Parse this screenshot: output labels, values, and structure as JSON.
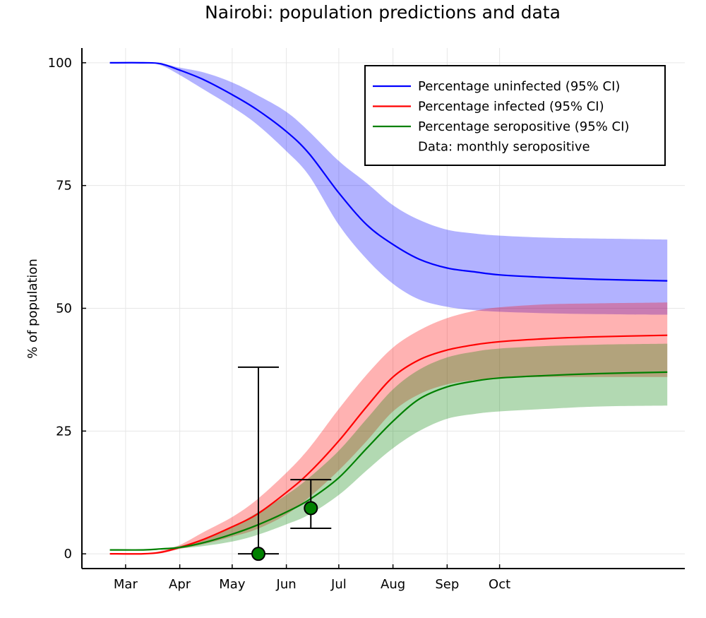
{
  "chart_data": {
    "type": "line",
    "title": "Nairobi: population predictions and data",
    "xlabel": "",
    "ylabel": "% of population",
    "x_unit": "days since Mar 1",
    "xticks": [
      {
        "label": "Mar",
        "x": 0
      },
      {
        "label": "Apr",
        "x": 31
      },
      {
        "label": "May",
        "x": 61
      },
      {
        "label": "Jun",
        "x": 92
      },
      {
        "label": "Jul",
        "x": 122
      },
      {
        "label": "Aug",
        "x": 153
      },
      {
        "label": "Sep",
        "x": 184
      },
      {
        "label": "Oct",
        "x": 214
      }
    ],
    "yticks": [
      "0",
      "25",
      "50",
      "75",
      "100"
    ],
    "xlim": [
      -25,
      320
    ],
    "ylim": [
      -3,
      103
    ],
    "grid": true,
    "legend_position": "top-right",
    "series": [
      {
        "name": "Percentage uninfected (95% CI)",
        "color": "#0000ff",
        "x": [
          -9,
          10,
          20,
          31,
          45,
          61,
          75,
          92,
          105,
          122,
          138,
          153,
          168,
          184,
          200,
          214,
          240,
          270,
          310
        ],
        "y": [
          100,
          100,
          99.8,
          98.5,
          96.5,
          93.5,
          90.5,
          86,
          81.5,
          73.5,
          67,
          63,
          60,
          58.2,
          57.4,
          56.8,
          56.3,
          55.9,
          55.6
        ],
        "lower": [
          100,
          100,
          99.5,
          97.5,
          94.5,
          91,
          87.5,
          82,
          77,
          67,
          60,
          55,
          51.8,
          50.3,
          49.6,
          49.3,
          49,
          48.8,
          48.7
        ],
        "upper": [
          100,
          100,
          99.9,
          99,
          98,
          96,
          93.5,
          90,
          86,
          80,
          75.5,
          71,
          68,
          66,
          65.2,
          64.8,
          64.4,
          64.2,
          64
        ]
      },
      {
        "name": "Percentage infected (95% CI)",
        "color": "#ff0000",
        "x": [
          -9,
          10,
          20,
          31,
          45,
          61,
          75,
          92,
          105,
          122,
          138,
          153,
          168,
          184,
          200,
          214,
          240,
          270,
          310
        ],
        "y": [
          0,
          0,
          0.3,
          1.3,
          3,
          5.5,
          8,
          12.5,
          16.5,
          23,
          30,
          36,
          39.5,
          41.5,
          42.6,
          43.2,
          43.8,
          44.2,
          44.5
        ],
        "lower": [
          0,
          0,
          0.1,
          1,
          2,
          3.5,
          5,
          8,
          11.5,
          17,
          23,
          29,
          32.5,
          34.5,
          35.4,
          35.8,
          36,
          36,
          36
        ],
        "upper": [
          0,
          0,
          0.6,
          1.8,
          4.5,
          7.5,
          11,
          16.5,
          21.5,
          29.5,
          36.5,
          42,
          45.5,
          48,
          49.5,
          50.2,
          50.8,
          51,
          51.2
        ]
      },
      {
        "name": "Percentage seropositive (95% CI)",
        "color": "#008000",
        "x": [
          -9,
          10,
          20,
          31,
          45,
          61,
          75,
          92,
          105,
          122,
          138,
          153,
          168,
          184,
          200,
          214,
          240,
          270,
          310
        ],
        "y": [
          0.8,
          0.8,
          1,
          1.3,
          2.3,
          4,
          5.8,
          8.5,
          11,
          15.5,
          21.5,
          27,
          31.5,
          34,
          35.2,
          35.8,
          36.3,
          36.7,
          37
        ],
        "lower": [
          0.8,
          0.8,
          0.9,
          1.1,
          1.6,
          2.5,
          3.8,
          6,
          8,
          12,
          17,
          21.5,
          25,
          27.5,
          28.5,
          29,
          29.5,
          30,
          30.2
        ],
        "upper": [
          0.8,
          0.8,
          1.1,
          1.6,
          3,
          5.5,
          8.3,
          12,
          15.5,
          21,
          27.5,
          33.5,
          37.5,
          40,
          41.2,
          41.8,
          42.3,
          42.6,
          42.8
        ]
      }
    ],
    "data_points": {
      "name": "Data: monthly seropositive",
      "color": "#008000",
      "points": [
        {
          "x": 76,
          "y": 0,
          "lower": 0,
          "upper": 38
        },
        {
          "x": 106,
          "y": 9.3,
          "lower": 5.2,
          "upper": 15.1
        }
      ]
    }
  }
}
